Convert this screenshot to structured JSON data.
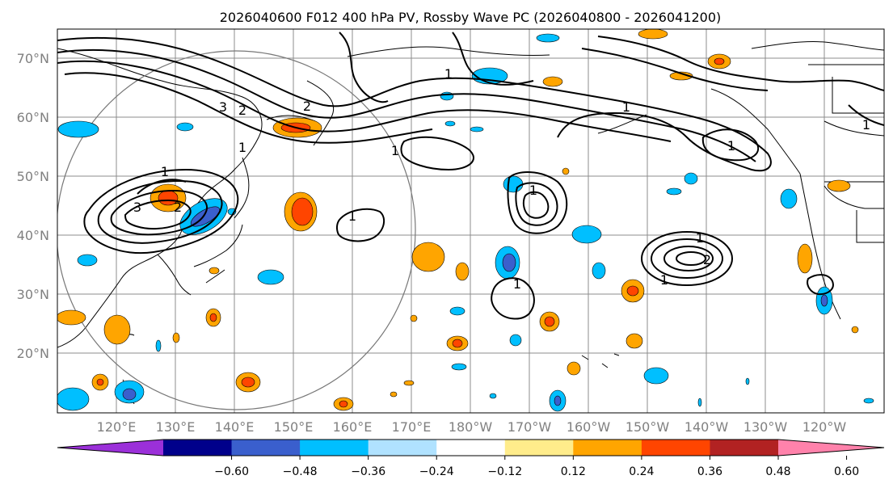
{
  "title": "2026040600 F012 400 hPa PV, Rossby Wave PC (2026040800 - 2026041200)",
  "axes": {
    "lat_labels": [
      "70°N",
      "60°N",
      "50°N",
      "40°N",
      "30°N",
      "20°N"
    ],
    "lon_labels": [
      "120°E",
      "130°E",
      "140°E",
      "150°E",
      "160°E",
      "170°E",
      "180°W",
      "170°W",
      "160°W",
      "150°W",
      "140°W",
      "130°W",
      "120°W"
    ]
  },
  "colorbar": {
    "ticks": [
      "−0.60",
      "−0.48",
      "−0.36",
      "−0.24",
      "−0.12",
      "0.12",
      "0.24",
      "0.36",
      "0.48",
      "0.60"
    ],
    "colors": [
      "#9b30d9",
      "#00008b",
      "#3a5fcd",
      "#00bfff",
      "#b0e2ff",
      "#ffffff",
      "#ffec8b",
      "#ffa500",
      "#ff4500",
      "#b22222",
      "#ff82ab"
    ]
  },
  "pv_labels": [
    "1",
    "2",
    "3",
    "1",
    "2",
    "3",
    "1",
    "2",
    "1",
    "1",
    "1",
    "1",
    "1",
    "2",
    "1",
    "1",
    "1",
    "1"
  ]
}
